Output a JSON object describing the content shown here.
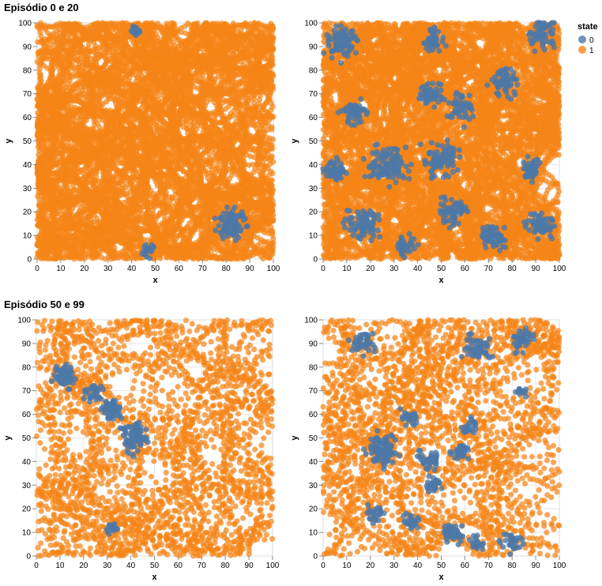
{
  "titles": {
    "group_top": "Episódio 0 e 20",
    "group_bottom": "Episódio 50 e 99"
  },
  "legend": {
    "title": "state",
    "items": [
      {
        "label": "0",
        "color": "#4c78a8"
      },
      {
        "label": "1",
        "color": "#f58518"
      }
    ]
  },
  "chart_data": [
    {
      "type": "scatter",
      "episode": "0",
      "xlabel": "x",
      "ylabel": "y",
      "xlim": [
        0,
        100
      ],
      "ylim": [
        0,
        100
      ],
      "xticks": [
        0,
        10,
        20,
        30,
        40,
        50,
        60,
        70,
        80,
        90,
        100
      ],
      "yticks": [
        0,
        10,
        20,
        30,
        40,
        50,
        60,
        70,
        80,
        90,
        100
      ],
      "grid": true,
      "series": [
        {
          "name": "0",
          "color": "#4c78a8",
          "clusters": [
            {
              "cx": 42,
              "cy": 97,
              "r": 2,
              "n": 20
            },
            {
              "cx": 82,
              "cy": 15,
              "r": 5,
              "n": 90
            },
            {
              "cx": 47,
              "cy": 4,
              "r": 3,
              "n": 18
            }
          ]
        },
        {
          "name": "1",
          "color": "#f58518",
          "walkers": 38,
          "steps": 260,
          "step": 1.7
        }
      ]
    },
    {
      "type": "scatter",
      "episode": "20",
      "xlabel": "x",
      "ylabel": "y",
      "xlim": [
        0,
        100
      ],
      "ylim": [
        0,
        100
      ],
      "xticks": [
        0,
        10,
        20,
        30,
        40,
        50,
        60,
        70,
        80,
        90,
        100
      ],
      "yticks": [
        0,
        10,
        20,
        30,
        40,
        50,
        60,
        70,
        80,
        90,
        100
      ],
      "grid": true,
      "series": [
        {
          "name": "0",
          "color": "#4c78a8",
          "clusters": [
            {
              "cx": 8,
              "cy": 92,
              "r": 6,
              "n": 80
            },
            {
              "cx": 47,
              "cy": 93,
              "r": 4,
              "n": 40
            },
            {
              "cx": 93,
              "cy": 95,
              "r": 5,
              "n": 60
            },
            {
              "cx": 77,
              "cy": 75,
              "r": 5,
              "n": 60
            },
            {
              "cx": 45,
              "cy": 70,
              "r": 4,
              "n": 50
            },
            {
              "cx": 58,
              "cy": 64,
              "r": 5,
              "n": 50
            },
            {
              "cx": 13,
              "cy": 62,
              "r": 4,
              "n": 50
            },
            {
              "cx": 28,
              "cy": 40,
              "r": 7,
              "n": 110
            },
            {
              "cx": 50,
              "cy": 42,
              "r": 6,
              "n": 80
            },
            {
              "cx": 5,
              "cy": 38,
              "r": 4,
              "n": 50
            },
            {
              "cx": 88,
              "cy": 38,
              "r": 4,
              "n": 50
            },
            {
              "cx": 17,
              "cy": 15,
              "r": 6,
              "n": 80
            },
            {
              "cx": 55,
              "cy": 20,
              "r": 5,
              "n": 60
            },
            {
              "cx": 72,
              "cy": 10,
              "r": 5,
              "n": 60
            },
            {
              "cx": 92,
              "cy": 15,
              "r": 5,
              "n": 60
            },
            {
              "cx": 35,
              "cy": 5,
              "r": 4,
              "n": 40
            }
          ]
        },
        {
          "name": "1",
          "color": "#f58518",
          "walkers": 40,
          "steps": 260,
          "step": 1.7
        }
      ]
    },
    {
      "type": "scatter",
      "episode": "50",
      "xlabel": "x",
      "ylabel": "y",
      "xlim": [
        0,
        100
      ],
      "ylim": [
        0,
        100
      ],
      "xticks": [
        0,
        10,
        20,
        30,
        40,
        50,
        60,
        70,
        80,
        90,
        100
      ],
      "yticks": [
        0,
        10,
        20,
        30,
        40,
        50,
        60,
        70,
        80,
        90,
        100
      ],
      "grid": true,
      "series": [
        {
          "name": "0",
          "color": "#4c78a8",
          "clusters": [
            {
              "cx": 12,
              "cy": 76,
              "r": 4,
              "n": 60
            },
            {
              "cx": 24,
              "cy": 69,
              "r": 3,
              "n": 30
            },
            {
              "cx": 32,
              "cy": 62,
              "r": 4,
              "n": 60
            },
            {
              "cx": 42,
              "cy": 50,
              "r": 5,
              "n": 80
            },
            {
              "cx": 32,
              "cy": 12,
              "r": 2,
              "n": 15
            }
          ]
        },
        {
          "name": "1",
          "color": "#f58518",
          "walkers": 30,
          "steps": 90,
          "step": 3.2
        }
      ]
    },
    {
      "type": "scatter",
      "episode": "99",
      "xlabel": "x",
      "ylabel": "y",
      "xlim": [
        0,
        100
      ],
      "ylim": [
        0,
        100
      ],
      "xticks": [
        0,
        10,
        20,
        30,
        40,
        50,
        60,
        70,
        80,
        90,
        100
      ],
      "yticks": [
        0,
        10,
        20,
        30,
        40,
        50,
        60,
        70,
        80,
        90,
        100
      ],
      "grid": true,
      "series": [
        {
          "name": "0",
          "color": "#4c78a8",
          "clusters": [
            {
              "cx": 17,
              "cy": 90,
              "r": 4,
              "n": 40
            },
            {
              "cx": 66,
              "cy": 88,
              "r": 5,
              "n": 50
            },
            {
              "cx": 84,
              "cy": 91,
              "r": 4,
              "n": 40
            },
            {
              "cx": 37,
              "cy": 59,
              "r": 3,
              "n": 25
            },
            {
              "cx": 62,
              "cy": 55,
              "r": 3,
              "n": 25
            },
            {
              "cx": 25,
              "cy": 45,
              "r": 6,
              "n": 90
            },
            {
              "cx": 45,
              "cy": 41,
              "r": 4,
              "n": 40
            },
            {
              "cx": 58,
              "cy": 44,
              "r": 3,
              "n": 30
            },
            {
              "cx": 47,
              "cy": 30,
              "r": 3,
              "n": 30
            },
            {
              "cx": 22,
              "cy": 18,
              "r": 3,
              "n": 25
            },
            {
              "cx": 37,
              "cy": 15,
              "r": 3,
              "n": 25
            },
            {
              "cx": 55,
              "cy": 10,
              "r": 4,
              "n": 40
            },
            {
              "cx": 65,
              "cy": 6,
              "r": 3,
              "n": 25
            },
            {
              "cx": 80,
              "cy": 6,
              "r": 4,
              "n": 30
            },
            {
              "cx": 84,
              "cy": 70,
              "r": 2,
              "n": 15
            }
          ]
        },
        {
          "name": "1",
          "color": "#f58518",
          "walkers": 32,
          "steps": 85,
          "step": 3.3
        }
      ]
    }
  ]
}
